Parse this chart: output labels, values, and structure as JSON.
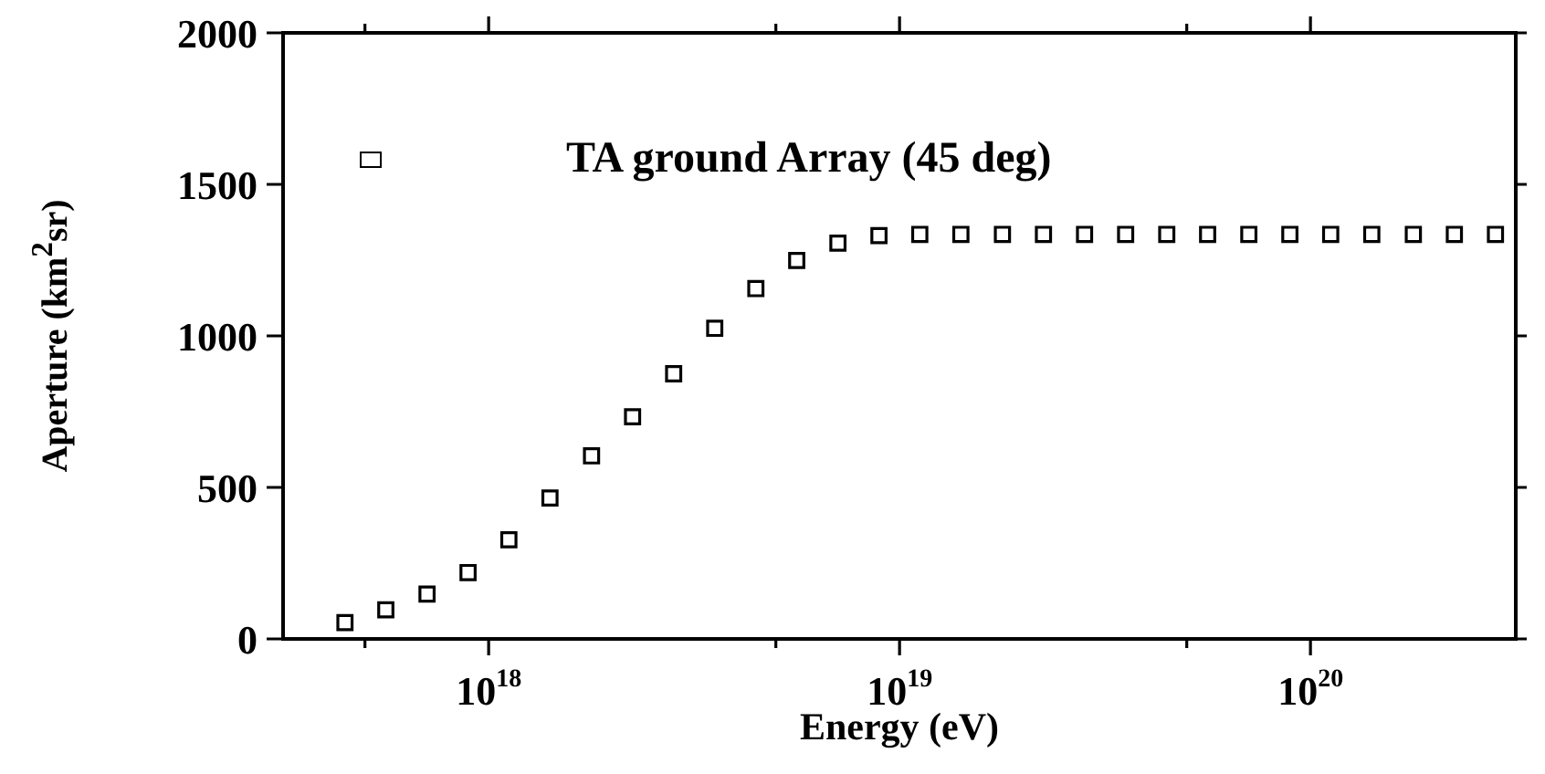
{
  "chart_data": {
    "type": "scatter",
    "xlabel": "Energy (eV)",
    "ylabel": "Aperture (km$^{2}$sr)",
    "log": "x",
    "marker": "square",
    "legend": "top",
    "grid": false,
    "xlim": [
      3.16e+17,
      3.16e+20
    ],
    "xticks": [
      {
        "value": 5e+17,
        "label": null
      },
      {
        "value": 1e+18,
        "label": "10$^{18}$"
      },
      {
        "value": 5e+18,
        "label": null
      },
      {
        "value": 1e+19,
        "label": "10$^{19}$"
      },
      {
        "value": 5e+19,
        "label": null
      },
      {
        "value": 1e+20,
        "label": "10$^{20}$"
      }
    ],
    "ylim": [
      0,
      2000
    ],
    "yticks": [
      0,
      500,
      1000,
      1500,
      2000
    ],
    "series": [
      {
        "name": "TA ground Array (45 deg)",
        "color": "#000000",
        "x": [
          4.47e+17,
          5.62e+17,
          7.08e+17,
          8.91e+17,
          1.12e+18,
          1.41e+18,
          1.78e+18,
          2.24e+18,
          2.82e+18,
          3.55e+18,
          4.47e+18,
          5.62e+18,
          7.08e+18,
          8.91e+18,
          1.12e+19,
          1.41e+19,
          1.78e+19,
          2.24e+19,
          2.82e+19,
          3.55e+19,
          4.47e+19,
          5.62e+19,
          7.08e+19,
          8.91e+19,
          1.12e+20,
          1.41e+20,
          1.78e+20,
          2.24e+20,
          2.82e+20
        ],
        "values": [
          54,
          96,
          148,
          219,
          327,
          465,
          604,
          733,
          875,
          1025,
          1156,
          1249,
          1306,
          1331,
          1335,
          1335,
          1335,
          1335,
          1335,
          1335,
          1335,
          1335,
          1335,
          1335,
          1335,
          1335,
          1335,
          1335,
          1335
        ]
      }
    ]
  }
}
